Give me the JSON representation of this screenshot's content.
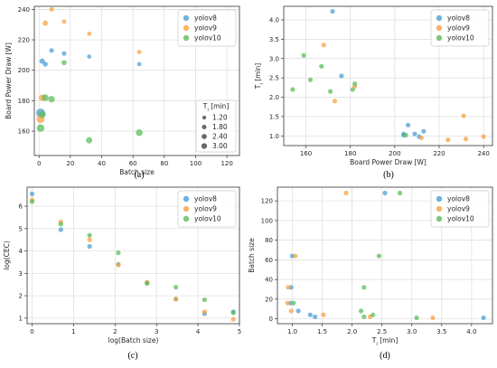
{
  "colors": {
    "yolov8": "#4c9fd6",
    "yolov9": "#fba042",
    "yolov10": "#5cbd5b"
  },
  "chart_data": [
    {
      "id": "a",
      "type": "scatter",
      "caption": "(a)",
      "xlabel": "Batch size",
      "ylabel": "Board Power Draw [W]",
      "xlim": [
        -3,
        128
      ],
      "ylim": [
        144,
        242
      ],
      "xticks": [
        0,
        20,
        40,
        60,
        80,
        100,
        120
      ],
      "yticks": [
        160,
        180,
        200,
        220,
        240
      ],
      "grid": true,
      "legend": {
        "position": "top-right",
        "entries": [
          "yolov8",
          "yolov9",
          "yolov10"
        ]
      },
      "size_legend": {
        "title": "T_i [min]",
        "title_main": "T",
        "title_sub": "i",
        "title_suffix": " [min]",
        "position": "bottom-right",
        "items": [
          {
            "label": "1.20",
            "value": 1.2
          },
          {
            "label": "1.80",
            "value": 1.8
          },
          {
            "label": "2.40",
            "value": 2.4
          },
          {
            "label": "3.00",
            "value": 3.0
          }
        ]
      },
      "series": [
        {
          "name": "yolov8",
          "points": [
            {
              "x": 1,
              "y": 172,
              "s": 4.2
            },
            {
              "x": 2,
              "y": 206,
              "s": 1.5
            },
            {
              "x": 4,
              "y": 204,
              "s": 1.3
            },
            {
              "x": 8,
              "y": 213,
              "s": 1.15
            },
            {
              "x": 16,
              "y": 211,
              "s": 1.1
            },
            {
              "x": 32,
              "y": 209,
              "s": 0.95
            },
            {
              "x": 64,
              "y": 204,
              "s": 1.0
            }
          ]
        },
        {
          "name": "yolov9",
          "points": [
            {
              "x": 1,
              "y": 168,
              "s": 3.35
            },
            {
              "x": 2,
              "y": 182,
              "s": 2.2
            },
            {
              "x": 4,
              "y": 231,
              "s": 1.5
            },
            {
              "x": 8,
              "y": 240,
              "s": 1.1
            },
            {
              "x": 16,
              "y": 232,
              "s": 1.0
            },
            {
              "x": 32,
              "y": 224,
              "s": 0.95
            },
            {
              "x": 64,
              "y": 212,
              "s": 1.0
            }
          ]
        },
        {
          "name": "yolov10",
          "points": [
            {
              "x": 1,
              "y": 162,
              "s": 3.1
            },
            {
              "x": 2,
              "y": 171,
              "s": 2.8
            },
            {
              "x": 4,
              "y": 182,
              "s": 2.4
            },
            {
              "x": 8,
              "y": 181,
              "s": 2.2
            },
            {
              "x": 16,
              "y": 205,
              "s": 1.4
            },
            {
              "x": 32,
              "y": 154,
              "s": 2.1
            },
            {
              "x": 64,
              "y": 159,
              "s": 2.5
            }
          ]
        }
      ]
    },
    {
      "id": "b",
      "type": "scatter",
      "caption": "(b)",
      "xlabel": "Board Power Draw [W]",
      "ylabel": "T_i [min]",
      "ylabel_main": "T",
      "ylabel_sub": "i",
      "ylabel_suffix": " [min]",
      "xlim": [
        150,
        244
      ],
      "ylim": [
        0.75,
        4.35
      ],
      "xticks": [
        160,
        180,
        200,
        220,
        240
      ],
      "yticks": [
        1.0,
        1.5,
        2.0,
        2.5,
        3.0,
        3.5,
        4.0
      ],
      "ytick_labels": [
        "1.0",
        "1.5",
        "2.0",
        "2.5",
        "3.0",
        "3.5",
        "4.0"
      ],
      "grid": true,
      "legend": {
        "position": "top-right",
        "entries": [
          "yolov8",
          "yolov9",
          "yolov10"
        ]
      },
      "series": [
        {
          "name": "yolov8",
          "points": [
            {
              "x": 172,
              "y": 4.22
            },
            {
              "x": 206,
              "y": 1.28
            },
            {
              "x": 204,
              "y": 1.05
            },
            {
              "x": 213,
              "y": 1.12
            },
            {
              "x": 211,
              "y": 0.98
            },
            {
              "x": 209,
              "y": 1.05
            },
            {
              "x": 204,
              "y": 1.02
            },
            {
              "x": 176,
              "y": 2.55
            }
          ]
        },
        {
          "name": "yolov9",
          "points": [
            {
              "x": 168,
              "y": 3.35
            },
            {
              "x": 182,
              "y": 2.28
            },
            {
              "x": 231,
              "y": 1.52
            },
            {
              "x": 240,
              "y": 0.98
            },
            {
              "x": 232,
              "y": 0.92
            },
            {
              "x": 224,
              "y": 0.9
            },
            {
              "x": 212,
              "y": 0.95
            },
            {
              "x": 173,
              "y": 1.9
            }
          ]
        },
        {
          "name": "yolov10",
          "points": [
            {
              "x": 162,
              "y": 2.45
            },
            {
              "x": 171,
              "y": 2.15
            },
            {
              "x": 182,
              "y": 2.35
            },
            {
              "x": 181,
              "y": 2.2
            },
            {
              "x": 205,
              "y": 1.02
            },
            {
              "x": 154,
              "y": 2.2
            },
            {
              "x": 159,
              "y": 3.08
            },
            {
              "x": 167,
              "y": 2.8
            }
          ]
        }
      ]
    },
    {
      "id": "c",
      "type": "scatter",
      "caption": "(c)",
      "xlabel": "log(Batch size)",
      "ylabel": "log(CEC)",
      "xlim": [
        -0.12,
        5.0
      ],
      "ylim": [
        0.75,
        6.85
      ],
      "xticks": [
        0,
        1,
        2,
        3,
        4,
        5
      ],
      "yticks": [
        1,
        2,
        3,
        4,
        5,
        6
      ],
      "grid": true,
      "legend": {
        "position": "top-right",
        "entries": [
          "yolov8",
          "yolov9",
          "yolov10"
        ]
      },
      "series": [
        {
          "name": "yolov8",
          "points": [
            {
              "x": 0,
              "y": 6.55
            },
            {
              "x": 0.693,
              "y": 4.95
            },
            {
              "x": 1.386,
              "y": 4.2
            },
            {
              "x": 2.079,
              "y": 3.4
            },
            {
              "x": 2.773,
              "y": 2.58
            },
            {
              "x": 3.466,
              "y": 1.85
            },
            {
              "x": 4.159,
              "y": 1.2
            },
            {
              "x": 4.852,
              "y": 1.28
            }
          ]
        },
        {
          "name": "yolov9",
          "points": [
            {
              "x": 0,
              "y": 6.28
            },
            {
              "x": 0.693,
              "y": 5.3
            },
            {
              "x": 1.386,
              "y": 4.5
            },
            {
              "x": 2.079,
              "y": 3.38
            },
            {
              "x": 2.773,
              "y": 2.6
            },
            {
              "x": 3.466,
              "y": 1.85
            },
            {
              "x": 4.159,
              "y": 1.28
            },
            {
              "x": 4.852,
              "y": 0.95
            }
          ]
        },
        {
          "name": "yolov10",
          "points": [
            {
              "x": 0,
              "y": 6.2
            },
            {
              "x": 0.693,
              "y": 5.2
            },
            {
              "x": 1.386,
              "y": 4.7
            },
            {
              "x": 2.079,
              "y": 3.92
            },
            {
              "x": 2.773,
              "y": 2.55
            },
            {
              "x": 3.466,
              "y": 2.38
            },
            {
              "x": 4.159,
              "y": 1.82
            },
            {
              "x": 4.852,
              "y": 1.24
            }
          ]
        }
      ]
    },
    {
      "id": "d",
      "type": "scatter",
      "caption": "(d)",
      "xlabel": "T_i [min]",
      "xlabel_main": "T",
      "xlabel_sub": "i",
      "xlabel_suffix": " [min]",
      "ylabel": "Batch size",
      "xlim": [
        0.75,
        4.35
      ],
      "ylim": [
        -5,
        134
      ],
      "xticks": [
        1.0,
        1.5,
        2.0,
        2.5,
        3.0,
        3.5,
        4.0
      ],
      "xtick_labels": [
        "1.0",
        "1.5",
        "2.0",
        "2.5",
        "3.0",
        "3.5",
        "4.0"
      ],
      "yticks": [
        0,
        20,
        40,
        60,
        80,
        100,
        120
      ],
      "grid": true,
      "legend": {
        "position": "top-right",
        "entries": [
          "yolov8",
          "yolov9",
          "yolov10"
        ]
      },
      "series": [
        {
          "name": "yolov8",
          "points": [
            {
              "x": 4.2,
              "y": 1
            },
            {
              "x": 1.3,
              "y": 4
            },
            {
              "x": 1.38,
              "y": 2
            },
            {
              "x": 1.1,
              "y": 8
            },
            {
              "x": 0.97,
              "y": 16
            },
            {
              "x": 0.98,
              "y": 32
            },
            {
              "x": 1.0,
              "y": 64
            },
            {
              "x": 2.55,
              "y": 128
            }
          ]
        },
        {
          "name": "yolov9",
          "points": [
            {
              "x": 3.35,
              "y": 1
            },
            {
              "x": 1.52,
              "y": 4
            },
            {
              "x": 0.98,
              "y": 8
            },
            {
              "x": 0.92,
              "y": 16
            },
            {
              "x": 0.93,
              "y": 32
            },
            {
              "x": 1.05,
              "y": 64
            },
            {
              "x": 1.9,
              "y": 128
            },
            {
              "x": 2.3,
              "y": 2
            }
          ]
        },
        {
          "name": "yolov10",
          "points": [
            {
              "x": 3.08,
              "y": 1
            },
            {
              "x": 2.2,
              "y": 2
            },
            {
              "x": 2.35,
              "y": 4
            },
            {
              "x": 2.15,
              "y": 8
            },
            {
              "x": 1.02,
              "y": 16
            },
            {
              "x": 2.2,
              "y": 32
            },
            {
              "x": 2.45,
              "y": 64
            },
            {
              "x": 2.8,
              "y": 128
            }
          ]
        }
      ]
    }
  ]
}
